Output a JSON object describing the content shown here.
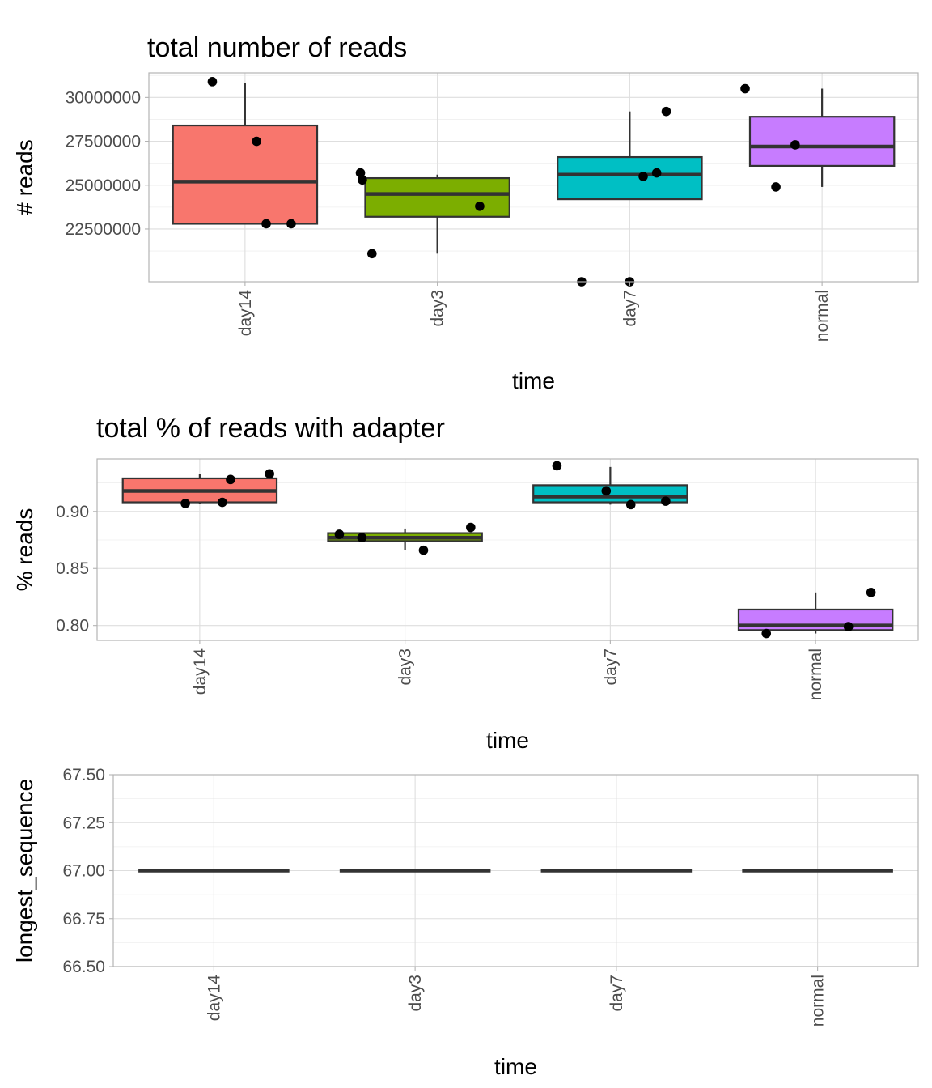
{
  "chart_data": [
    {
      "type": "box",
      "title": "total number of reads",
      "xlabel": "time",
      "ylabel": "# reads",
      "categories": [
        "day14",
        "day3",
        "day7",
        "normal"
      ],
      "colors": [
        "#F8766D",
        "#7CAE00",
        "#00BFC4",
        "#C77CFF"
      ],
      "ylim": [
        19500000,
        31400000
      ],
      "yticks": [
        22500000,
        25000000,
        27500000,
        30000000
      ],
      "ytick_labels": [
        "22500000",
        "25000000",
        "27500000",
        "30000000"
      ],
      "grid": true,
      "boxes": [
        {
          "category": "day14",
          "whisker_low": 22800000,
          "q1": 22800000,
          "median": 25200000,
          "q3": 28400000,
          "whisker_high": 30800000
        },
        {
          "category": "day3",
          "whisker_low": 21100000,
          "q1": 23200000,
          "median": 24500000,
          "q3": 25400000,
          "whisker_high": 25600000
        },
        {
          "category": "day7",
          "whisker_low": 24200000,
          "q1": 24200000,
          "median": 25600000,
          "q3": 26600000,
          "whisker_high": 29200000
        },
        {
          "category": "normal",
          "whisker_low": 24900000,
          "q1": 26100000,
          "median": 27200000,
          "q3": 28900000,
          "whisker_high": 30500000
        }
      ],
      "points": [
        {
          "category": "day14",
          "y": 30900000,
          "jitter": -0.17
        },
        {
          "category": "day14",
          "y": 27500000,
          "jitter": 0.06
        },
        {
          "category": "day14",
          "y": 22800000,
          "jitter": 0.11
        },
        {
          "category": "day14",
          "y": 22800000,
          "jitter": 0.24
        },
        {
          "category": "day3",
          "y": 25700000,
          "jitter": -0.4
        },
        {
          "category": "day3",
          "y": 25300000,
          "jitter": -0.39
        },
        {
          "category": "day3",
          "y": 21100000,
          "jitter": -0.34
        },
        {
          "category": "day3",
          "y": 23800000,
          "jitter": 0.22
        },
        {
          "category": "day7",
          "y": 19500000,
          "jitter": -0.25
        },
        {
          "category": "day7",
          "y": 19500000,
          "jitter": 0.0
        },
        {
          "category": "day7",
          "y": 25500000,
          "jitter": 0.07
        },
        {
          "category": "day7",
          "y": 25700000,
          "jitter": 0.14
        },
        {
          "category": "day7",
          "y": 29200000,
          "jitter": 0.19
        },
        {
          "category": "normal",
          "y": 30500000,
          "jitter": -0.4
        },
        {
          "category": "normal",
          "y": 24900000,
          "jitter": -0.24
        },
        {
          "category": "normal",
          "y": 27300000,
          "jitter": -0.14
        }
      ]
    },
    {
      "type": "box",
      "title": "total % of reads with adapter",
      "xlabel": "time",
      "ylabel": "% reads",
      "categories": [
        "day14",
        "day3",
        "day7",
        "normal"
      ],
      "colors": [
        "#F8766D",
        "#7CAE00",
        "#00BFC4",
        "#C77CFF"
      ],
      "ylim": [
        0.787,
        0.946
      ],
      "yticks": [
        0.8,
        0.85,
        0.9
      ],
      "ytick_labels": [
        "0.80",
        "0.85",
        "0.90"
      ],
      "grid": true,
      "boxes": [
        {
          "category": "day14",
          "whisker_low": 0.907,
          "q1": 0.908,
          "median": 0.918,
          "q3": 0.929,
          "whisker_high": 0.933
        },
        {
          "category": "day3",
          "whisker_low": 0.866,
          "q1": 0.874,
          "median": 0.877,
          "q3": 0.881,
          "whisker_high": 0.885
        },
        {
          "category": "day7",
          "whisker_low": 0.906,
          "q1": 0.908,
          "median": 0.913,
          "q3": 0.923,
          "whisker_high": 0.939
        },
        {
          "category": "normal",
          "whisker_low": 0.793,
          "q1": 0.796,
          "median": 0.8,
          "q3": 0.814,
          "whisker_high": 0.829
        }
      ],
      "points": [
        {
          "category": "day14",
          "y": 0.907,
          "jitter": -0.07
        },
        {
          "category": "day14",
          "y": 0.908,
          "jitter": 0.11
        },
        {
          "category": "day14",
          "y": 0.928,
          "jitter": 0.15
        },
        {
          "category": "day14",
          "y": 0.933,
          "jitter": 0.34
        },
        {
          "category": "day3",
          "y": 0.88,
          "jitter": -0.32
        },
        {
          "category": "day3",
          "y": 0.877,
          "jitter": -0.21
        },
        {
          "category": "day3",
          "y": 0.866,
          "jitter": 0.09
        },
        {
          "category": "day3",
          "y": 0.886,
          "jitter": 0.32
        },
        {
          "category": "day7",
          "y": 0.94,
          "jitter": -0.26
        },
        {
          "category": "day7",
          "y": 0.918,
          "jitter": -0.02
        },
        {
          "category": "day7",
          "y": 0.906,
          "jitter": 0.1
        },
        {
          "category": "day7",
          "y": 0.909,
          "jitter": 0.27
        },
        {
          "category": "normal",
          "y": 0.793,
          "jitter": -0.24
        },
        {
          "category": "normal",
          "y": 0.799,
          "jitter": 0.16
        },
        {
          "category": "normal",
          "y": 0.829,
          "jitter": 0.27
        }
      ]
    },
    {
      "type": "box",
      "title": "",
      "xlabel": "time",
      "ylabel": "longest_sequence",
      "categories": [
        "day14",
        "day3",
        "day7",
        "normal"
      ],
      "colors": [
        "#F8766D",
        "#7CAE00",
        "#00BFC4",
        "#C77CFF"
      ],
      "ylim": [
        66.5,
        67.5
      ],
      "yticks": [
        66.5,
        66.75,
        67.0,
        67.25,
        67.5
      ],
      "ytick_labels": [
        "66.50",
        "66.75",
        "67.00",
        "67.25",
        "67.50"
      ],
      "grid": true,
      "boxes": [
        {
          "category": "day14",
          "whisker_low": 67,
          "q1": 67,
          "median": 67,
          "q3": 67,
          "whisker_high": 67
        },
        {
          "category": "day3",
          "whisker_low": 67,
          "q1": 67,
          "median": 67,
          "q3": 67,
          "whisker_high": 67
        },
        {
          "category": "day7",
          "whisker_low": 67,
          "q1": 67,
          "median": 67,
          "q3": 67,
          "whisker_high": 67
        },
        {
          "category": "normal",
          "whisker_low": 67,
          "q1": 67,
          "median": 67,
          "q3": 67,
          "whisker_high": 67
        }
      ],
      "points": []
    }
  ]
}
